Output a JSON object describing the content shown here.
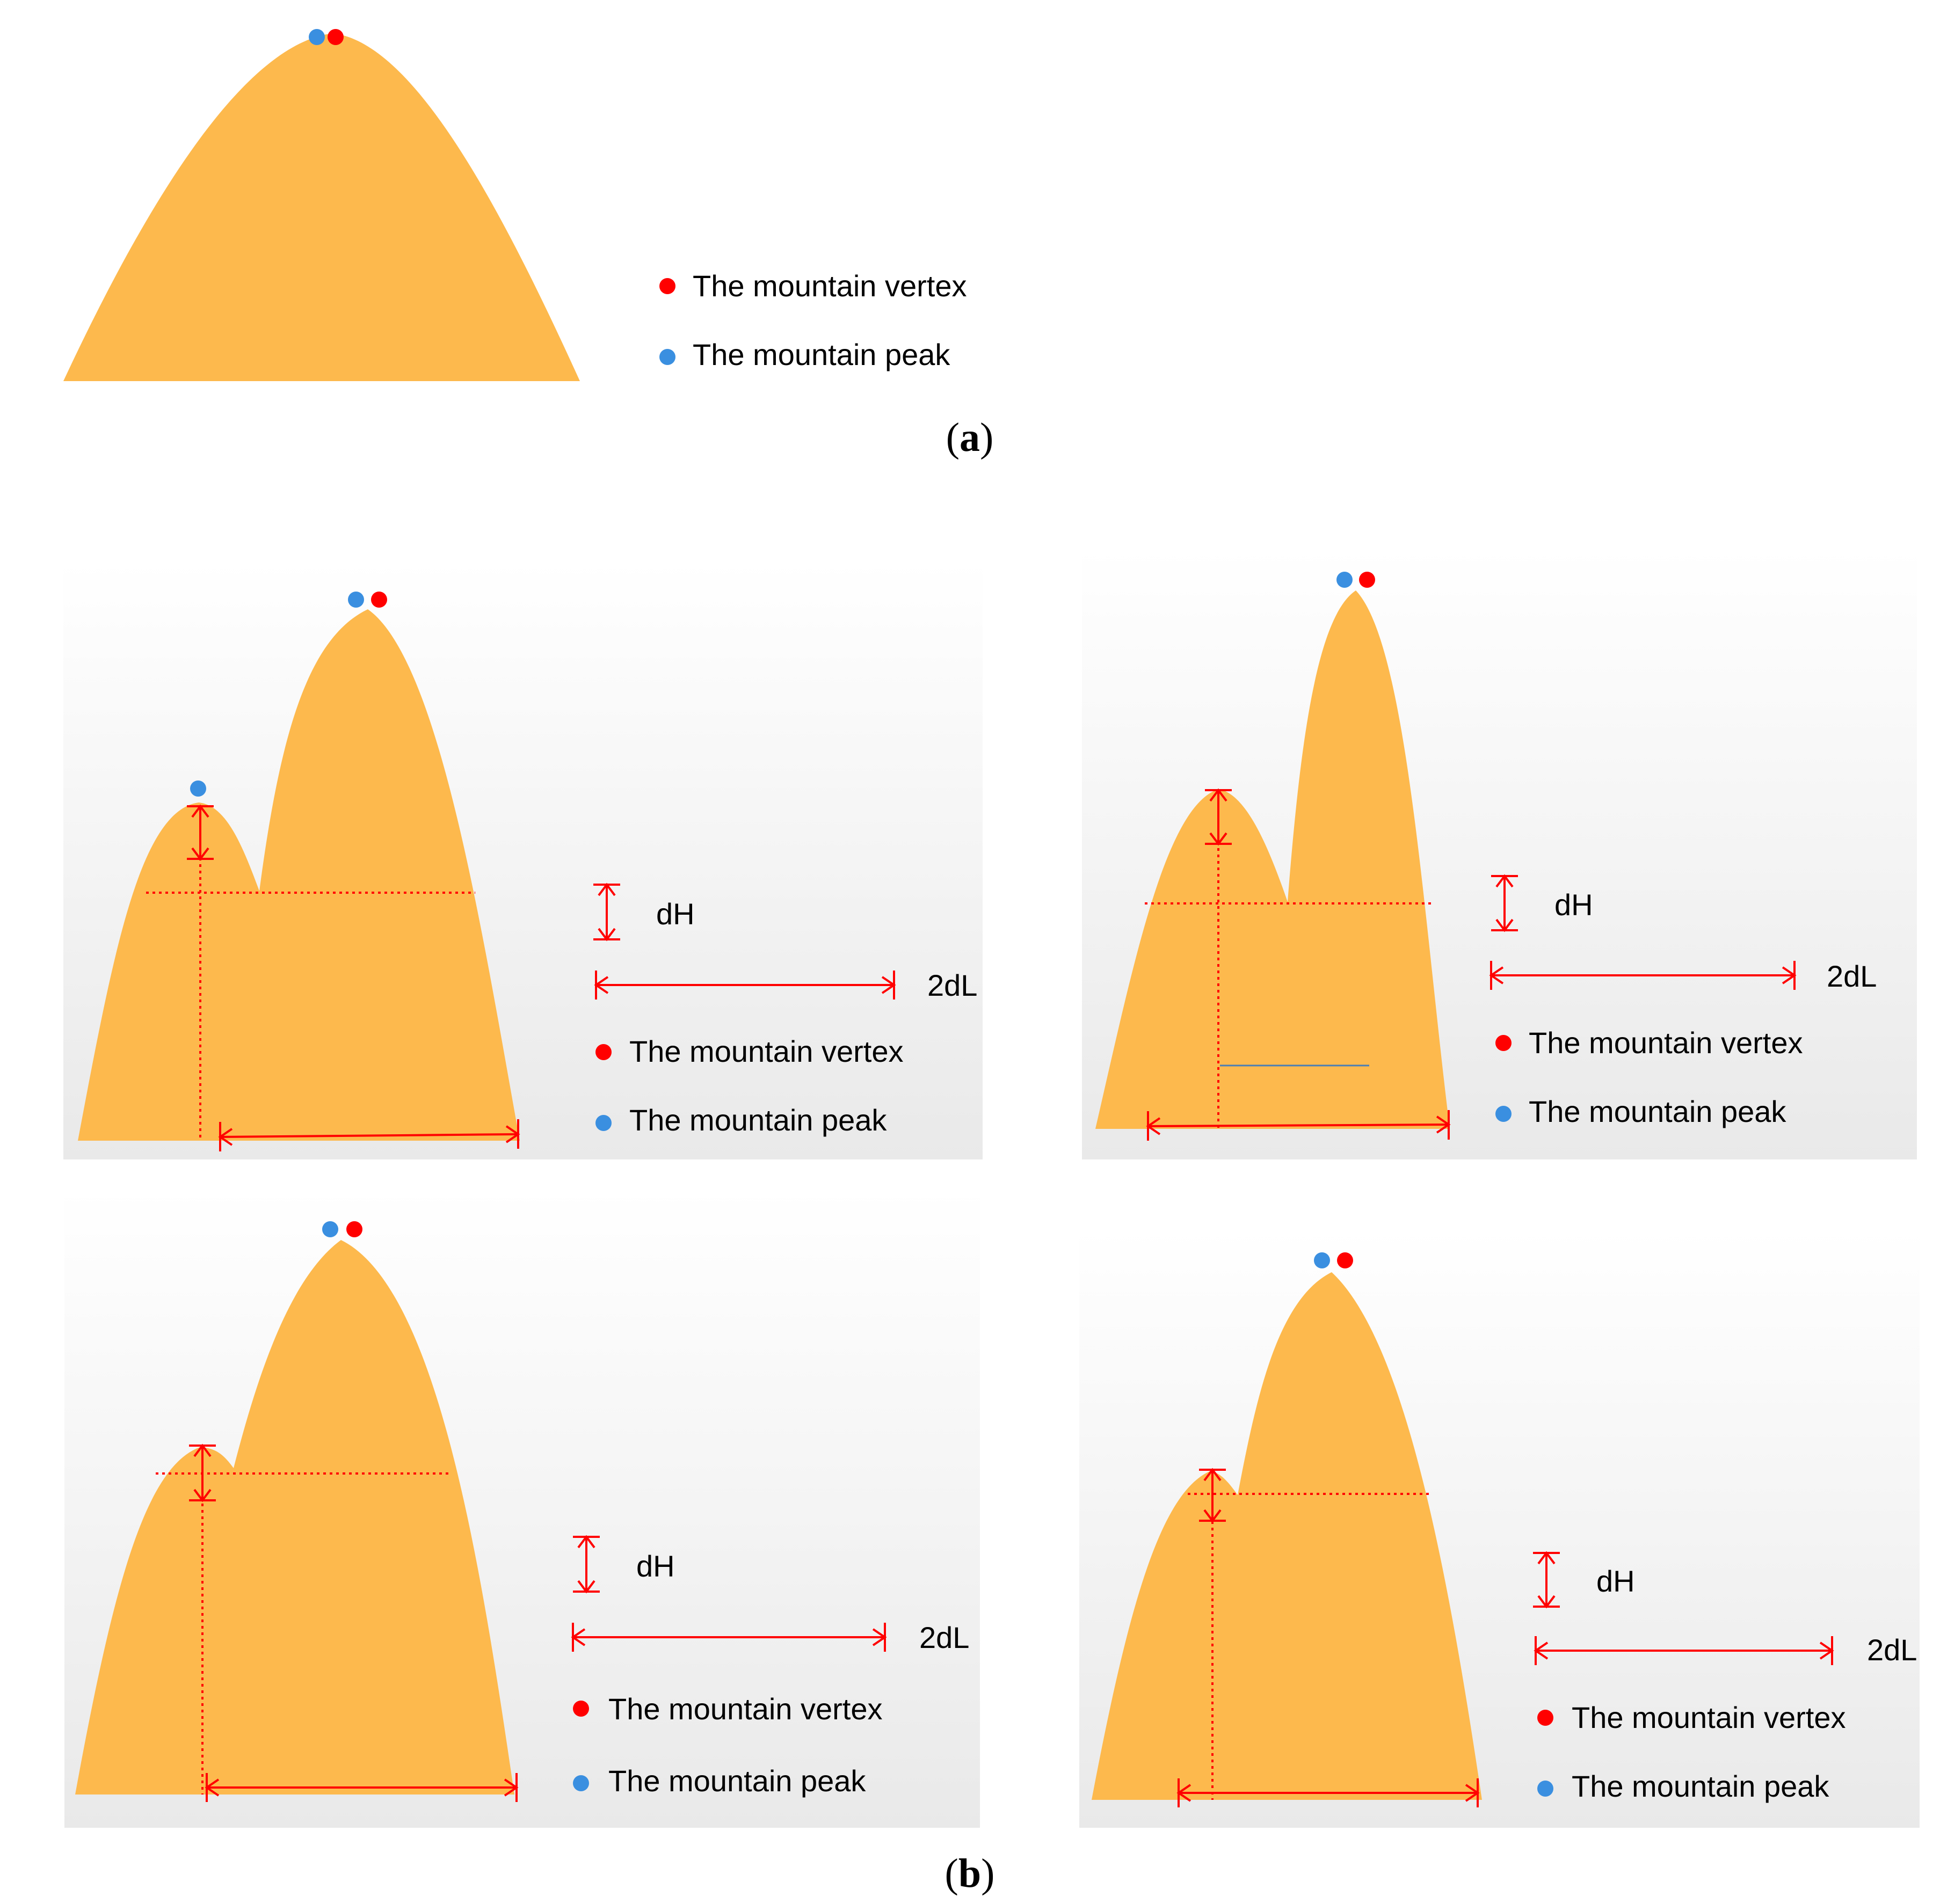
{
  "colors": {
    "mountain": "#FDB94D",
    "vertex_dot": "#FF0000",
    "peak_dot": "#3A8FE0",
    "marker_lines": "#FF0000",
    "panel_top": "#FFFFFF",
    "panel_bottom": "#E9E9E9"
  },
  "legend": {
    "vertex": "The mountain vertex",
    "peak": "The mountain peak",
    "dH": "dH",
    "dL": "2dL"
  },
  "captions": {
    "a_open": "(",
    "a_letter": "a",
    "a_close": ")",
    "b_open": "(",
    "b_letter": "b",
    "b_close": ")"
  },
  "panels": [
    {
      "id": "a",
      "markers": [
        "vertex-dot",
        "peak-dot"
      ]
    },
    {
      "id": "b1",
      "markers": [
        "vertex-dot",
        "peak-dot",
        "secondary-peak-dot",
        "dH-marker",
        "2dL-marker"
      ]
    },
    {
      "id": "b2",
      "markers": [
        "vertex-dot",
        "peak-dot",
        "dH-marker",
        "2dL-marker"
      ]
    },
    {
      "id": "b3",
      "markers": [
        "vertex-dot",
        "peak-dot",
        "dH-marker",
        "2dL-marker"
      ]
    },
    {
      "id": "b4",
      "markers": [
        "vertex-dot",
        "peak-dot",
        "dH-marker",
        "2dL-marker"
      ]
    }
  ]
}
